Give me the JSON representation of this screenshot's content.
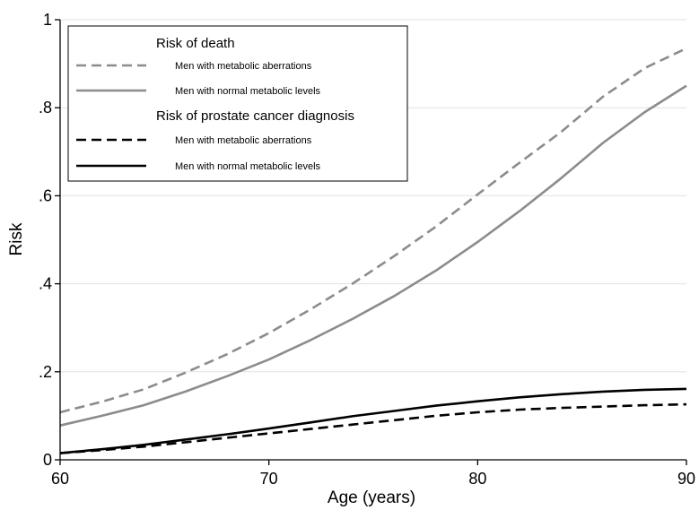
{
  "chart_data": {
    "type": "line",
    "title": "",
    "xlabel": "Age (years)",
    "ylabel": "Risk",
    "xlim": [
      60,
      90
    ],
    "ylim": [
      0,
      1
    ],
    "x_ticks": [
      60,
      70,
      80,
      90
    ],
    "x_tick_labels": [
      "60",
      "70",
      "80",
      "90"
    ],
    "y_ticks": [
      0,
      0.2,
      0.4,
      0.6,
      0.8,
      1
    ],
    "y_tick_labels": [
      "0",
      ".2",
      ".4",
      ".6",
      ".8",
      "1"
    ],
    "grid": "horizontal",
    "legend_position": "top-left",
    "legend": [
      {
        "type": "heading",
        "text": "Risk of death"
      },
      {
        "type": "entry",
        "text": "Men with metabolic aberrations",
        "series": 0
      },
      {
        "type": "entry",
        "text": "Men with normal metabolic levels",
        "series": 1
      },
      {
        "type": "heading",
        "text": "Risk of prostate cancer diagnosis"
      },
      {
        "type": "entry",
        "text": "Men with metabolic aberrations",
        "series": 2
      },
      {
        "type": "entry",
        "text": "Men with normal metabolic levels",
        "series": 3
      }
    ],
    "series": [
      {
        "group": "Risk of death",
        "name": "Men with metabolic aberrations",
        "color": "#8c8c8c",
        "style": "dashed",
        "x": [
          60,
          62,
          64,
          66,
          68,
          70,
          72,
          74,
          76,
          78,
          80,
          82,
          84,
          86,
          88,
          90
        ],
        "y": [
          0.108,
          0.132,
          0.16,
          0.198,
          0.24,
          0.288,
          0.342,
          0.4,
          0.463,
          0.53,
          0.603,
          0.675,
          0.745,
          0.825,
          0.89,
          0.935
        ]
      },
      {
        "group": "Risk of death",
        "name": "Men with normal metabolic levels",
        "color": "#8c8c8c",
        "style": "solid",
        "x": [
          60,
          62,
          64,
          66,
          68,
          70,
          72,
          74,
          76,
          78,
          80,
          82,
          84,
          86,
          88,
          90
        ],
        "y": [
          0.078,
          0.1,
          0.124,
          0.155,
          0.19,
          0.228,
          0.272,
          0.32,
          0.372,
          0.43,
          0.495,
          0.565,
          0.64,
          0.72,
          0.79,
          0.85
        ]
      },
      {
        "group": "Risk of prostate cancer diagnosis",
        "name": "Men with metabolic aberrations",
        "color": "#000000",
        "style": "dashed",
        "x": [
          60,
          62,
          64,
          66,
          68,
          70,
          72,
          74,
          76,
          78,
          80,
          82,
          84,
          86,
          88,
          90
        ],
        "y": [
          0.015,
          0.022,
          0.03,
          0.04,
          0.05,
          0.06,
          0.07,
          0.08,
          0.09,
          0.1,
          0.108,
          0.114,
          0.118,
          0.121,
          0.124,
          0.126
        ]
      },
      {
        "group": "Risk of prostate cancer diagnosis",
        "name": "Men with normal metabolic levels",
        "color": "#000000",
        "style": "solid",
        "x": [
          60,
          62,
          64,
          66,
          68,
          70,
          72,
          74,
          76,
          78,
          80,
          82,
          84,
          86,
          88,
          90
        ],
        "y": [
          0.015,
          0.024,
          0.034,
          0.046,
          0.058,
          0.071,
          0.085,
          0.099,
          0.111,
          0.123,
          0.133,
          0.142,
          0.149,
          0.155,
          0.159,
          0.161
        ]
      }
    ]
  }
}
